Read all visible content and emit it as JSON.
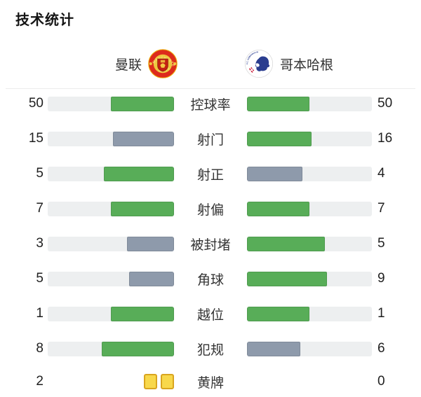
{
  "page": {
    "title": "技术统计"
  },
  "teams": {
    "home": {
      "name": "曼联",
      "logo": "manchester-united-crest"
    },
    "away": {
      "name": "哥本哈根",
      "logo": "fc-copenhagen-crest"
    }
  },
  "colors": {
    "green": "#58ad58",
    "gray": "#8e9aab",
    "track": "#edeff0",
    "card_yellow": "#f8d84b",
    "card_border": "#d9a51f",
    "divider": "#ececec"
  },
  "stats": {
    "rows": [
      {
        "label": "控球率",
        "home": 50,
        "away": 50,
        "display": "bar"
      },
      {
        "label": "射门",
        "home": 15,
        "away": 16,
        "display": "bar"
      },
      {
        "label": "射正",
        "home": 5,
        "away": 4,
        "display": "bar"
      },
      {
        "label": "射偏",
        "home": 7,
        "away": 7,
        "display": "bar"
      },
      {
        "label": "被封堵",
        "home": 3,
        "away": 5,
        "display": "bar"
      },
      {
        "label": "角球",
        "home": 5,
        "away": 9,
        "display": "bar"
      },
      {
        "label": "越位",
        "home": 1,
        "away": 1,
        "display": "bar"
      },
      {
        "label": "犯规",
        "home": 8,
        "away": 6,
        "display": "bar"
      },
      {
        "label": "黄牌",
        "home": 2,
        "away": 0,
        "display": "cards"
      }
    ]
  },
  "chart_data": {
    "type": "bar",
    "subtype": "paired-horizontal-comparison",
    "title": "技术统计",
    "categories": [
      "控球率",
      "射门",
      "射正",
      "射偏",
      "被封堵",
      "角球",
      "越位",
      "犯规",
      "黄牌"
    ],
    "series": [
      {
        "name": "曼联",
        "values": [
          50,
          15,
          5,
          7,
          3,
          5,
          1,
          8,
          2
        ]
      },
      {
        "name": "哥本哈根",
        "values": [
          50,
          16,
          4,
          7,
          5,
          9,
          1,
          6,
          0
        ]
      }
    ],
    "bar_fill_rule": "width = value / (home+away) of track, anchored toward center",
    "color_rule": "side with value >= opponent is green #58ad58, lower side is slate gray #8e9aab",
    "last_row_rendering": "yellow card icons instead of bars",
    "legend_position": "top, team name with club crest",
    "grid": false
  }
}
